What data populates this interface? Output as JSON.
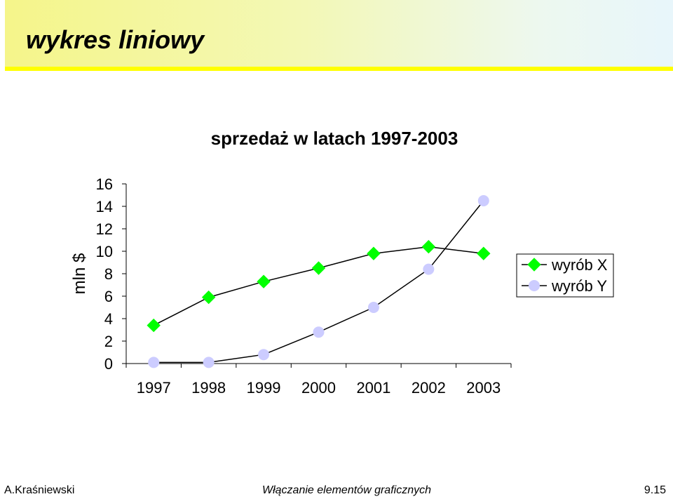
{
  "slide": {
    "title": "wykres liniowy"
  },
  "footer": {
    "author": "A.Kraśniewski",
    "subject": "Włączanie elementów graficznych",
    "page": "9.15"
  },
  "colors": {
    "header_rule": "#ffff00",
    "series_x": "#00ff00",
    "series_y": "#ccccff",
    "line": "#000000"
  },
  "chart_data": {
    "type": "line",
    "title": "sprzedaż w latach 1997-2003",
    "xlabel": "",
    "ylabel": "mln $",
    "categories": [
      "1997",
      "1998",
      "1999",
      "2000",
      "2001",
      "2002",
      "2003"
    ],
    "yticks": [
      "0",
      "2",
      "4",
      "6",
      "8",
      "10",
      "12",
      "14",
      "16"
    ],
    "ylim": [
      0,
      16
    ],
    "grid": false,
    "legend_position": "right",
    "series": [
      {
        "name": "wyrób X",
        "marker": "diamond",
        "color": "#00ff00",
        "values": [
          3.4,
          5.9,
          7.3,
          8.5,
          9.8,
          10.4,
          9.8
        ]
      },
      {
        "name": "wyrób Y",
        "marker": "circle",
        "color": "#ccccff",
        "values": [
          0.1,
          0.1,
          0.8,
          2.8,
          5.0,
          8.4,
          14.5
        ]
      }
    ]
  }
}
